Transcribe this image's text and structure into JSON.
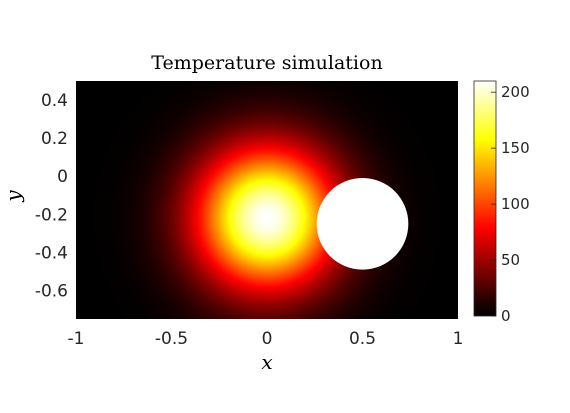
{
  "chart_data": {
    "type": "heatmap",
    "title": "Temperature simulation",
    "xlabel": "x",
    "ylabel": "y",
    "xlim": [
      -1,
      1
    ],
    "ylim": [
      -0.75,
      0.5
    ],
    "x_ticks": [
      {
        "value": -1,
        "label": "-1"
      },
      {
        "value": -0.5,
        "label": "-0.5"
      },
      {
        "value": 0,
        "label": "0"
      },
      {
        "value": 0.5,
        "label": "0.5"
      },
      {
        "value": 1,
        "label": "1"
      }
    ],
    "y_ticks": [
      {
        "value": 0.4,
        "label": "0.4"
      },
      {
        "value": 0.2,
        "label": "0.2"
      },
      {
        "value": 0,
        "label": "0"
      },
      {
        "value": -0.2,
        "label": "-0.2"
      },
      {
        "value": -0.4,
        "label": "-0.4"
      },
      {
        "value": -0.6,
        "label": "-0.6"
      }
    ],
    "colormap": "hot",
    "colorbar": {
      "range": [
        0,
        210
      ],
      "ticks": [
        {
          "value": 0,
          "label": "0"
        },
        {
          "value": 50,
          "label": "50"
        },
        {
          "value": 100,
          "label": "100"
        },
        {
          "value": 150,
          "label": "150"
        },
        {
          "value": 200,
          "label": "200"
        }
      ]
    },
    "heat_source": {
      "center_x": 0.0,
      "center_y": -0.22,
      "peak_value": 210,
      "spread": 0.26
    },
    "obstacle": {
      "shape": "circle",
      "center_x": 0.5,
      "center_y": -0.25,
      "radius": 0.24,
      "color": "#ffffff"
    },
    "grid": false
  }
}
